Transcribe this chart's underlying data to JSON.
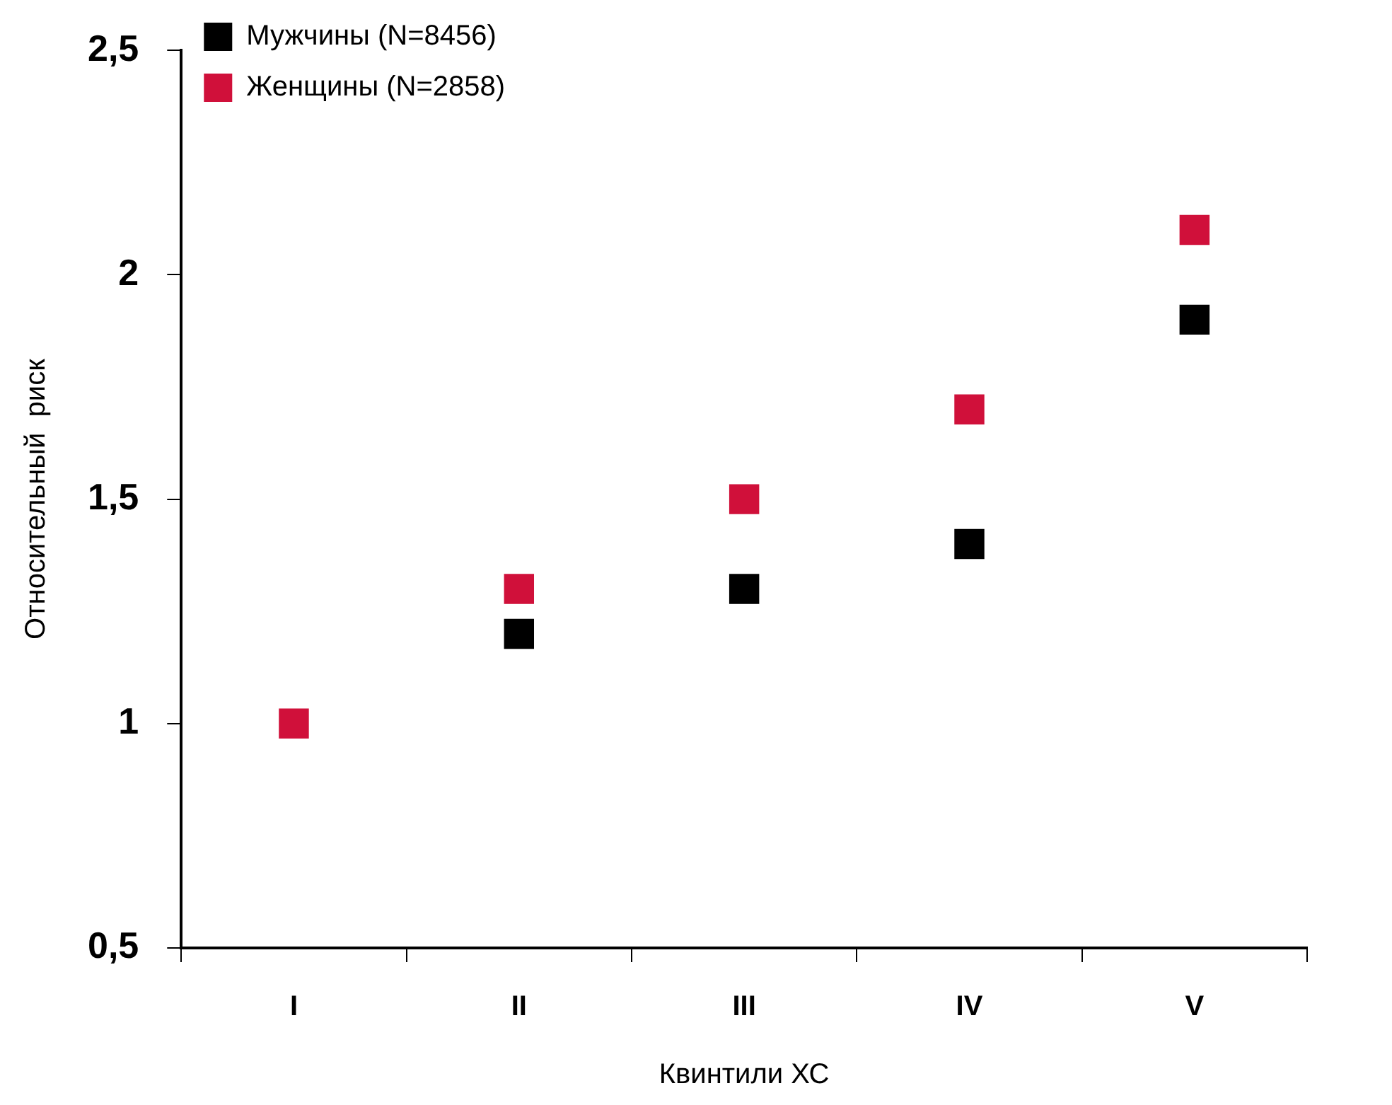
{
  "chart_data": {
    "type": "scatter",
    "xlabel": "Квинтили ХС",
    "ylabel": "Относительный  риск",
    "categories": [
      "I",
      "II",
      "III",
      "IV",
      "V"
    ],
    "series": [
      {
        "name": "Мужчины (N=8456)",
        "color": "#000000",
        "values": [
          null,
          1.2,
          1.3,
          1.4,
          1.9
        ]
      },
      {
        "name": "Женщины (N=2858)",
        "color": "#d0103a",
        "values": [
          1.0,
          1.3,
          1.5,
          1.7,
          2.1
        ]
      }
    ],
    "ylim": [
      0.5,
      2.5
    ],
    "yticks": [
      {
        "value": 0.5,
        "label": "0,5"
      },
      1,
      {
        "value": 1.5,
        "label": "1,5"
      },
      2,
      {
        "value": 2.5,
        "label": "2,5"
      }
    ],
    "grid": false,
    "legend": "top left",
    "marker": "square"
  }
}
